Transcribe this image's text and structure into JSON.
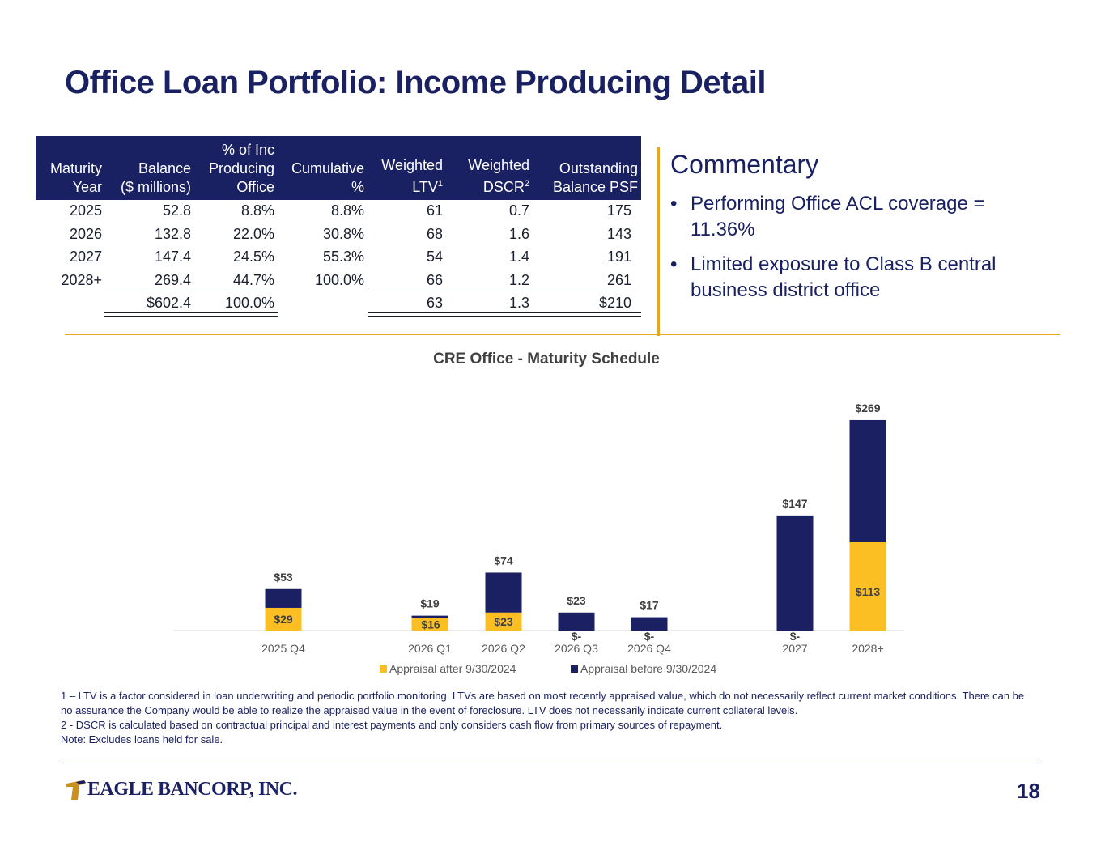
{
  "title": "Office Loan Portfolio: Income Producing Detail",
  "table": {
    "headers": [
      {
        "l1": "Maturity",
        "l2": "Year"
      },
      {
        "l1": "Balance",
        "l2": "($ millions)"
      },
      {
        "l0": "% of Inc",
        "l1": "Producing",
        "l2": "Office"
      },
      {
        "l1": "Cumulative",
        "l2": "%"
      },
      {
        "l1": "Weighted",
        "l2": "LTV",
        "sup": "1"
      },
      {
        "l1": "Weighted",
        "l2": "DSCR",
        "sup": "2"
      },
      {
        "l1": "Outstanding",
        "l2": "Balance PSF"
      }
    ],
    "rows": [
      [
        "2025",
        "52.8",
        "8.8%",
        "8.8%",
        "61",
        "0.7",
        "175"
      ],
      [
        "2026",
        "132.8",
        "22.0%",
        "30.8%",
        "68",
        "1.6",
        "143"
      ],
      [
        "2027",
        "147.4",
        "24.5%",
        "55.3%",
        "54",
        "1.4",
        "191"
      ],
      [
        "2028+",
        "269.4",
        "44.7%",
        "100.0%",
        "66",
        "1.2",
        "261"
      ]
    ],
    "total": [
      "",
      "$602.4",
      "100.0%",
      "",
      "63",
      "1.3",
      "$210"
    ]
  },
  "commentary": {
    "title": "Commentary",
    "bullet_char": "•",
    "bullets": [
      {
        "line1": "Performing Office ACL coverage =",
        "line2": "11.36%"
      },
      {
        "line1": "Limited exposure to Class B central",
        "line2": "business district office"
      }
    ]
  },
  "chart_data": {
    "type": "bar",
    "stacked": true,
    "title": "CRE Office - Maturity Schedule",
    "categories": [
      "2025 Q4",
      "2026 Q1",
      "2026 Q2",
      "2026 Q3",
      "2026 Q4",
      "2027",
      "2028+"
    ],
    "gap_after": [
      "2025 Q4",
      "2026 Q4"
    ],
    "series": [
      {
        "name": "Appraisal after 9/30/2024",
        "color": "#fbbf24",
        "values": [
          29,
          16,
          23,
          0,
          0,
          0,
          113
        ],
        "labels": [
          "$29",
          "$16",
          "$23",
          "$-",
          "$-",
          "$-",
          "$113"
        ]
      },
      {
        "name": "Appraisal before 9/30/2024",
        "color": "#1b2063",
        "values": [
          24,
          3,
          51,
          23,
          17,
          147,
          156
        ]
      }
    ],
    "totals": [
      "$53",
      "$19",
      "$74",
      "$23",
      "$17",
      "$147",
      "$269"
    ],
    "ylim": [
      0,
      300
    ],
    "legend_position": "bottom",
    "grid": false
  },
  "notes": [
    "1 – LTV is a factor considered in loan underwriting and periodic portfolio monitoring. LTVs are based on most recently appraised value, which do not necessarily reflect current market conditions. There can be no assurance the Company would be able to realize the appraised value in the event of foreclosure. LTV does not necessarily indicate current collateral levels.",
    "2 - DSCR is calculated based on contractual principal and interest payments and only considers cash flow from primary sources of repayment.",
    "Note: Excludes loans held for sale."
  ],
  "logo_text": "EAGLE BANCORP, INC.",
  "page_number": "18",
  "colors": {
    "navy": "#1a2163",
    "gold": "#e3a81c"
  }
}
